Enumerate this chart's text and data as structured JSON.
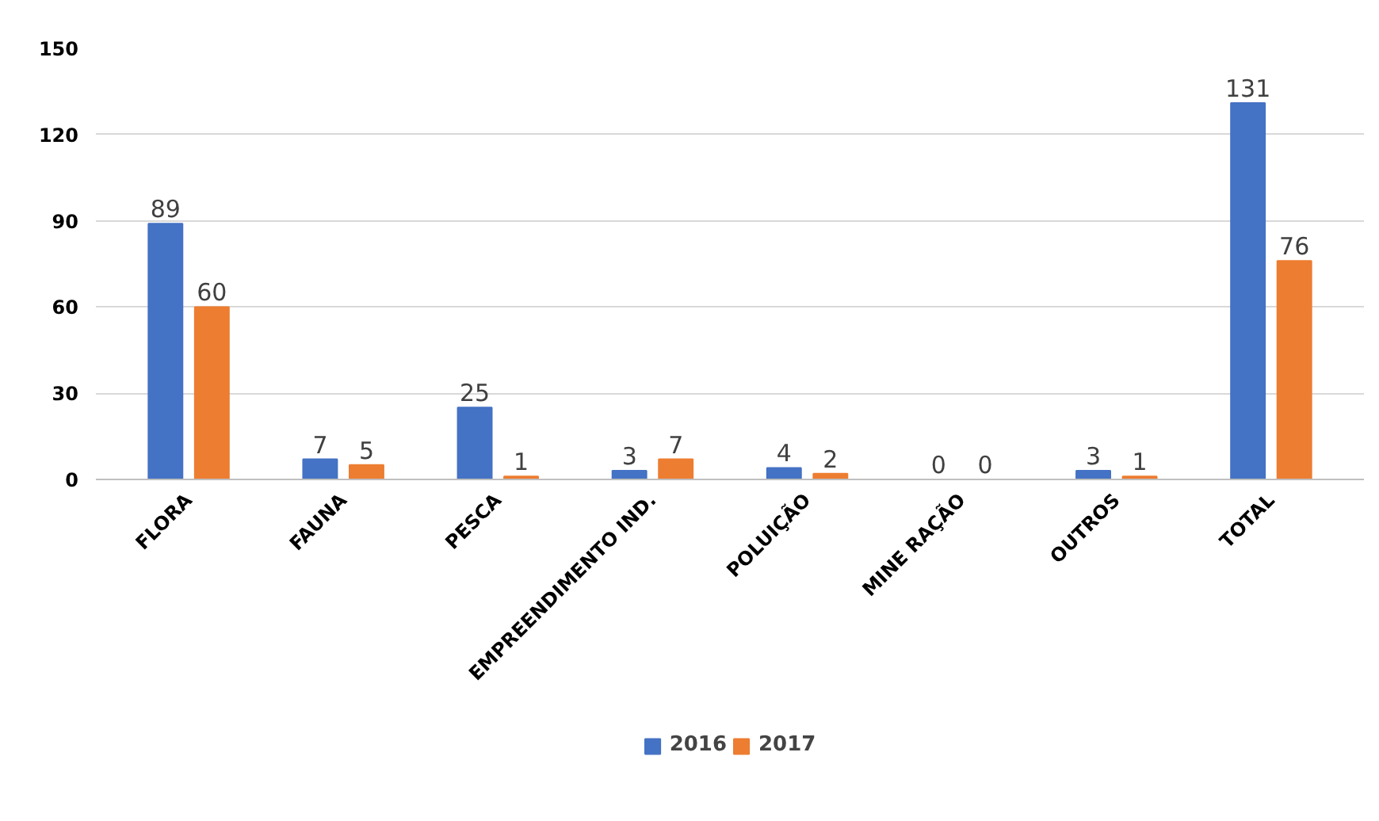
{
  "chart_data": {
    "type": "bar",
    "categories": [
      "FLORA",
      "FAUNA",
      "PESCA",
      "EMPREENDIMENTO IND.",
      "POLUIÇÃO",
      "MINE RAÇÃO",
      "OUTROS",
      "TOTAL"
    ],
    "series": [
      {
        "name": "2016",
        "color": "#4472c4",
        "values": [
          89,
          7,
          25,
          3,
          4,
          0,
          3,
          131
        ]
      },
      {
        "name": "2017",
        "color": "#ed7d31",
        "values": [
          60,
          5,
          1,
          7,
          2,
          0,
          1,
          76
        ]
      }
    ],
    "ylim": [
      0,
      150
    ],
    "yticks": [
      0,
      30,
      60,
      90,
      120,
      150
    ],
    "grid": "y",
    "legend": "bottom",
    "data_labels": true
  }
}
